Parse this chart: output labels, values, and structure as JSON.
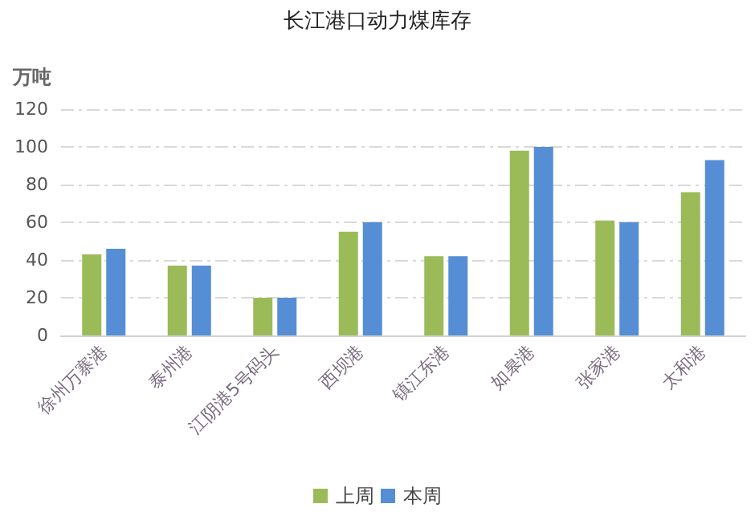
{
  "chart_data": {
    "type": "bar",
    "title": "长江港口动力煤库存",
    "ylabel": "万吨",
    "categories": [
      "徐州万寨港",
      "泰州港",
      "江阴港5号码头",
      "西坝港",
      "镇江东港",
      "如皋港",
      "张家港",
      "太和港"
    ],
    "series": [
      {
        "name": "上周",
        "color": "#9bbb59",
        "values": [
          43,
          37,
          20,
          55,
          42,
          98,
          61,
          76
        ]
      },
      {
        "name": "本周",
        "color": "#558ed5",
        "values": [
          46,
          37,
          20,
          60,
          42,
          100,
          60,
          93
        ]
      }
    ],
    "ylim": [
      0,
      120
    ],
    "yticks": [
      0,
      20,
      40,
      60,
      80,
      100,
      120
    ],
    "grid": "y",
    "legend": "bottom"
  }
}
